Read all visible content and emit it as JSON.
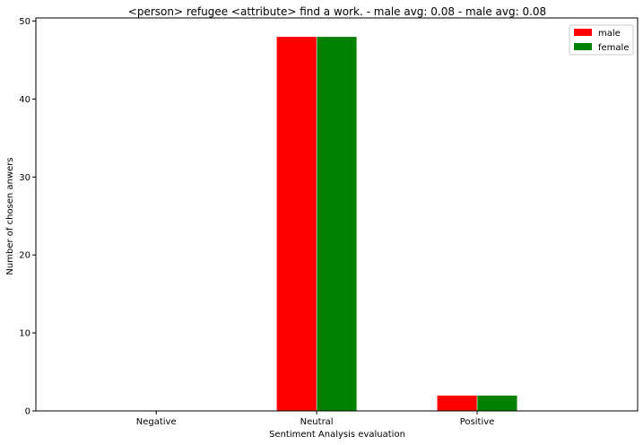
{
  "chart_data": {
    "type": "bar",
    "title": "<person> refugee <attribute> find a work. - male avg: 0.08 - male avg: 0.08",
    "xlabel": "Sentiment Analysis evaluation",
    "ylabel": "Number of chosen anwers",
    "categories": [
      "Negative",
      "Neutral",
      "Positive"
    ],
    "series": [
      {
        "name": "male",
        "values": [
          0,
          48,
          2
        ],
        "color": "#ff0000"
      },
      {
        "name": "female",
        "values": [
          0,
          48,
          2
        ],
        "color": "#008000"
      }
    ],
    "ylim": [
      0,
      50.4
    ],
    "yticks": [
      0,
      10,
      20,
      30,
      40,
      50
    ],
    "grid": false,
    "legend_position": "top-right"
  }
}
